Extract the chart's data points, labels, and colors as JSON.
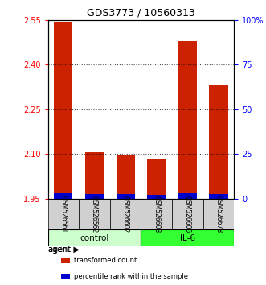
{
  "title": "GDS3773 / 10560313",
  "samples": [
    "GSM526561",
    "GSM526562",
    "GSM526602",
    "GSM526603",
    "GSM526605",
    "GSM526678"
  ],
  "groups": [
    "control",
    "control",
    "control",
    "IL-6",
    "IL-6",
    "IL-6"
  ],
  "transformed_counts": [
    2.545,
    2.105,
    2.095,
    2.085,
    2.48,
    2.33
  ],
  "percentile_ranks": [
    0.03,
    0.025,
    0.025,
    0.02,
    0.03,
    0.025
  ],
  "ylim": [
    1.95,
    2.55
  ],
  "yticks_left": [
    1.95,
    2.1,
    2.25,
    2.4,
    2.55
  ],
  "yticks_right": [
    0,
    25,
    50,
    75,
    100
  ],
  "ytick_labels_right": [
    "0",
    "25",
    "50",
    "75",
    "100%"
  ],
  "bar_bottom": 1.95,
  "percentile_scale_max": 100,
  "percentile_display_range": 0.6,
  "group_colors": {
    "control": "#ccffcc",
    "IL-6": "#33ff33"
  },
  "bar_color_red": "#cc2200",
  "bar_color_blue": "#0000cc",
  "bar_width": 0.6,
  "grid_color": "#000000",
  "xlabel_rotation": -90,
  "agent_label": "agent",
  "group_labels": [
    "control",
    "IL-6"
  ],
  "legend_items": [
    "transformed count",
    "percentile rank within the sample"
  ],
  "legend_colors": [
    "#cc2200",
    "#0000cc"
  ]
}
